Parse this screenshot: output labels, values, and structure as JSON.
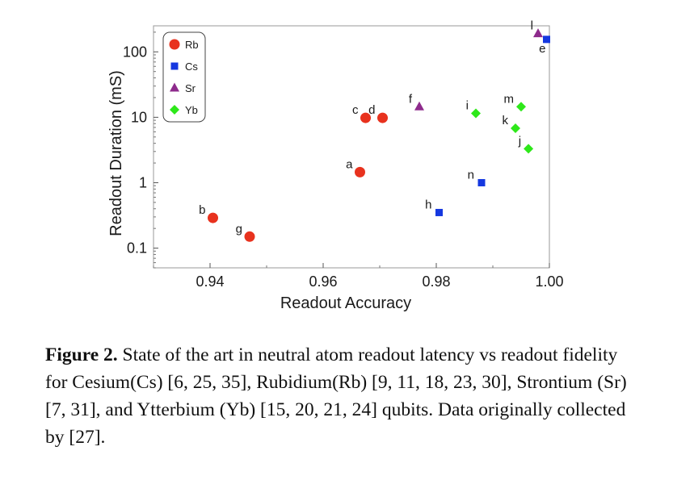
{
  "caption": {
    "label": "Figure 2.",
    "text": " State of the art in neutral atom readout latency vs readout fidelity for Cesium(Cs) [6, 25, 35], Rubidium(Rb) [9, 11, 18, 23, 30], Strontium (Sr) [7, 31], and Ytterbium (Yb) [15, 20, 21, 24] qubits. Data originally collected by [27]."
  },
  "chart_data": {
    "type": "scatter",
    "title": "",
    "xlabel": "Readout Accuracy",
    "ylabel": "Readout Duration (mS)",
    "xlim": [
      0.93,
      1.0
    ],
    "ylim": [
      0.05,
      250
    ],
    "yscale": "log",
    "grid": false,
    "legend_position": "top-left",
    "x_ticks": [
      {
        "value": 0.94,
        "label": "0.94"
      },
      {
        "value": 0.96,
        "label": "0.96"
      },
      {
        "value": 0.98,
        "label": "0.98"
      },
      {
        "value": 1.0,
        "label": "1.00"
      }
    ],
    "y_ticks": [
      {
        "value": 0.1,
        "label": "0.1"
      },
      {
        "value": 1,
        "label": "1"
      },
      {
        "value": 10,
        "label": "10"
      },
      {
        "value": 100,
        "label": "100"
      }
    ],
    "series": [
      {
        "name": "Rb",
        "marker": "circle",
        "color": "#e8321e",
        "points": [
          {
            "label": "a",
            "x": 0.9665,
            "y": 1.45
          },
          {
            "label": "b",
            "x": 0.9405,
            "y": 0.29
          },
          {
            "label": "c",
            "x": 0.9675,
            "y": 9.8
          },
          {
            "label": "d",
            "x": 0.9705,
            "y": 9.8
          },
          {
            "label": "g",
            "x": 0.947,
            "y": 0.15
          }
        ]
      },
      {
        "name": "Cs",
        "marker": "square",
        "color": "#1538e0",
        "points": [
          {
            "label": "e",
            "x": 0.9995,
            "y": 155
          },
          {
            "label": "h",
            "x": 0.9805,
            "y": 0.35
          },
          {
            "label": "n",
            "x": 0.988,
            "y": 1.0
          }
        ]
      },
      {
        "name": "Sr",
        "marker": "triangle",
        "color": "#8e2b8c",
        "points": [
          {
            "label": "f",
            "x": 0.977,
            "y": 14.5
          },
          {
            "label": "l",
            "x": 0.998,
            "y": 190
          }
        ]
      },
      {
        "name": "Yb",
        "marker": "diamond",
        "color": "#2ee81a",
        "points": [
          {
            "label": "i",
            "x": 0.987,
            "y": 11.5
          },
          {
            "label": "j",
            "x": 0.9963,
            "y": 3.3
          },
          {
            "label": "k",
            "x": 0.994,
            "y": 6.8
          },
          {
            "label": "m",
            "x": 0.995,
            "y": 14.5
          }
        ]
      }
    ]
  }
}
